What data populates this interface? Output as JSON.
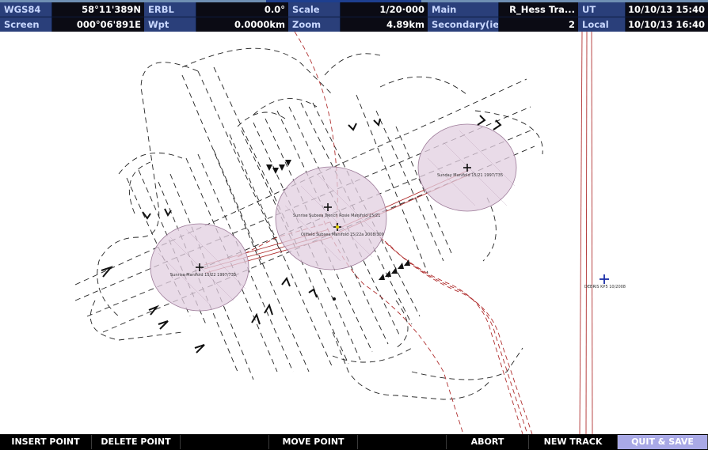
{
  "header": {
    "row1": {
      "datum_label": "WGS84",
      "latitude": "58°11'389N",
      "erbl_label": "ERBL",
      "erbl_value": "0.0°",
      "scale_label": "Scale",
      "scale_value": "1/20·000",
      "main_label": "Main",
      "main_value": "R_Hess Tra...",
      "ut_label": "UT",
      "ut_value": "10/10/13 15:40"
    },
    "row2": {
      "screen_label": "Screen",
      "longitude": "000°06'891E",
      "wpt_label": "Wpt",
      "wpt_value": "0.0000km",
      "zoom_label": "Zoom",
      "zoom_value": "4.89km",
      "secondary_label": "Secondary(ies)",
      "secondary_value": "2",
      "local_label": "Local",
      "local_value": "10/10/13 16:40"
    }
  },
  "map": {
    "targets": [
      "Sunday Manifold 15/21 1997/735",
      "Sunrise Subsea Trench Rosie Manifold 15/21",
      "Oilfield Subsea Manifold 15/22a 2008/309",
      "Sunrise Manifold 15/22 1997/735",
      "DEBRIS KP5 10/2008"
    ],
    "colors": {
      "survey_line": "#222222",
      "pipeline": "#b03030",
      "zone_fill": "#e2cfe0",
      "zone_stroke": "#9c7a98",
      "debris_marker": "#1a2ea8"
    }
  },
  "footer": {
    "buttons": [
      "INSERT POINT",
      "DELETE POINT",
      "MOVE POINT",
      "ABORT",
      "NEW TRACK",
      "QUIT & SAVE"
    ]
  }
}
